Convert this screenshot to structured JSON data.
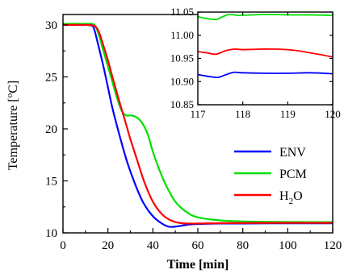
{
  "chart_data": [
    {
      "type": "line",
      "xlabel": "Time [min]",
      "ylabel_parts": [
        "Temperature [",
        "o",
        "C]"
      ],
      "xlim": [
        0,
        120
      ],
      "ylim": [
        10,
        31
      ],
      "xticks": [
        0,
        20,
        40,
        60,
        80,
        100,
        120
      ],
      "yticks": [
        10,
        15,
        20,
        25,
        30
      ],
      "legend_position": "center-right",
      "series": [
        {
          "name": "ENV",
          "color": "#0000ff",
          "x": [
            0,
            10,
            13,
            14,
            16,
            18,
            20,
            22,
            25,
            28,
            30,
            33,
            36,
            40,
            44,
            47,
            50,
            53,
            56,
            60,
            70,
            80,
            100,
            120
          ],
          "y": [
            30.0,
            30.0,
            29.9,
            29.5,
            27.8,
            26.0,
            24.0,
            22.0,
            19.5,
            17.2,
            15.9,
            14.2,
            12.8,
            11.6,
            10.9,
            10.6,
            10.6,
            10.7,
            10.8,
            10.85,
            10.9,
            10.9,
            10.92,
            10.92
          ]
        },
        {
          "name": "PCM",
          "color": "#00e000",
          "x": [
            0,
            10,
            14,
            16,
            18,
            20,
            22,
            24,
            26,
            28,
            30,
            32,
            34,
            36,
            38,
            40,
            43,
            46,
            50,
            55,
            60,
            70,
            80,
            100,
            120
          ],
          "y": [
            30.1,
            30.1,
            30.0,
            29.0,
            27.5,
            26.0,
            24.5,
            23.0,
            21.8,
            21.3,
            21.3,
            21.2,
            20.9,
            20.3,
            19.3,
            17.8,
            16.0,
            14.5,
            13.0,
            12.0,
            11.5,
            11.2,
            11.1,
            11.05,
            11.04
          ]
        },
        {
          "name": "H2O",
          "color": "#ff0000",
          "x": [
            0,
            10,
            14,
            16,
            18,
            20,
            22,
            25,
            28,
            30,
            33,
            36,
            40,
            44,
            48,
            52,
            56,
            60,
            70,
            80,
            100,
            120
          ],
          "y": [
            30.0,
            30.0,
            29.9,
            29.3,
            28.0,
            26.6,
            25.0,
            22.7,
            20.5,
            19.0,
            17.0,
            15.0,
            13.0,
            11.8,
            11.2,
            10.95,
            10.9,
            10.9,
            10.93,
            10.95,
            10.96,
            10.96
          ]
        }
      ]
    },
    {
      "type": "line",
      "xlim": [
        117,
        120
      ],
      "ylim": [
        10.85,
        11.05
      ],
      "xticks": [
        117,
        118,
        119,
        120
      ],
      "yticks": [
        10.85,
        10.9,
        10.95,
        11.0,
        11.05
      ],
      "series": [
        {
          "name": "ENV",
          "color": "#0000ff",
          "x": [
            117,
            117.25,
            117.45,
            117.6,
            117.8,
            118.0,
            118.5,
            119.0,
            119.5,
            120
          ],
          "y": [
            10.915,
            10.911,
            10.909,
            10.914,
            10.92,
            10.919,
            10.918,
            10.918,
            10.919,
            10.917
          ]
        },
        {
          "name": "PCM",
          "color": "#00e000",
          "x": [
            117,
            117.2,
            117.4,
            117.55,
            117.7,
            117.9,
            118.2,
            118.6,
            119.0,
            119.5,
            120
          ],
          "y": [
            11.04,
            11.036,
            11.034,
            11.04,
            11.045,
            11.043,
            11.044,
            11.045,
            11.044,
            11.044,
            11.043
          ]
        },
        {
          "name": "H2O",
          "color": "#ff0000",
          "x": [
            117,
            117.2,
            117.4,
            117.6,
            117.8,
            118.0,
            118.4,
            118.8,
            119.2,
            119.5,
            119.8,
            120
          ],
          "y": [
            10.965,
            10.962,
            10.959,
            10.966,
            10.97,
            10.969,
            10.97,
            10.97,
            10.967,
            10.962,
            10.957,
            10.953
          ]
        }
      ]
    }
  ],
  "legend": [
    {
      "label": "ENV",
      "color": "#0000ff"
    },
    {
      "label": "PCM",
      "color": "#00e000"
    },
    {
      "label_main": "H",
      "label_sub": "2",
      "label_tail": "O",
      "color": "#ff0000"
    }
  ]
}
